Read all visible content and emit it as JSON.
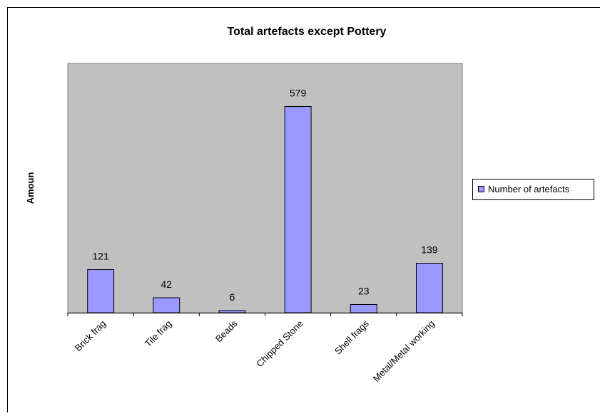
{
  "chart_data": {
    "type": "bar",
    "title": "Total artefacts except Pottery",
    "xlabel": "",
    "ylabel": "Amoun",
    "categories": [
      "Brick frag",
      "Tile frag",
      "Beads",
      "Chipped Stone",
      "Shell frags",
      "Metal/Metal working"
    ],
    "series": [
      {
        "name": "Number of artefacts",
        "values": [
          121,
          42,
          6,
          579,
          23,
          139
        ]
      }
    ],
    "ylim": [
      0,
      700
    ],
    "grid": false,
    "legend": "right",
    "colors": {
      "plot_bg": "#c0c0c0",
      "bar_fill": "#9999ff",
      "bar_stroke": "#000000"
    }
  }
}
